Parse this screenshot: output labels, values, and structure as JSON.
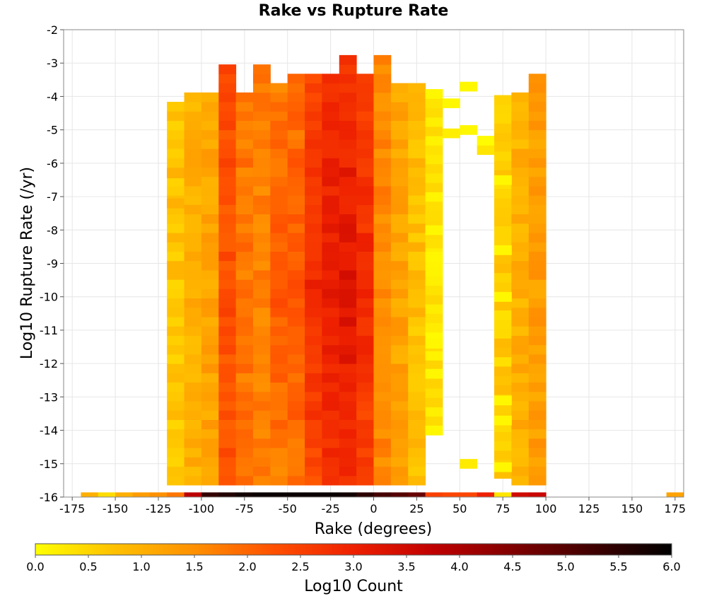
{
  "chart_data": {
    "type": "heatmap",
    "title": "Rake vs Rupture Rate",
    "xlabel": "Rake (degrees)",
    "ylabel": "Log10 Rupture Rate (/yr)",
    "colorbar_label": "Log10 Count",
    "xlim": [
      -180,
      180
    ],
    "ylim": [
      -16,
      -2
    ],
    "x_ticks": [
      -175,
      -150,
      -125,
      -100,
      -75,
      -50,
      -25,
      0,
      25,
      50,
      75,
      100,
      125,
      150,
      175
    ],
    "y_ticks": [
      -2,
      -3,
      -4,
      -5,
      -6,
      -7,
      -8,
      -9,
      -10,
      -11,
      -12,
      -13,
      -14,
      -15,
      -16
    ],
    "colorbar_ticks": [
      "0.0",
      "0.5",
      "1.0",
      "1.5",
      "2.0",
      "2.5",
      "3.0",
      "3.5",
      "4.0",
      "4.5",
      "5.0",
      "5.5",
      "6.0"
    ],
    "color_range": [
      0,
      6
    ],
    "colormap": [
      "#ffff00",
      "#ffc000",
      "#ff9000",
      "#ff5000",
      "#ee2000",
      "#c00000",
      "#800000",
      "#400000",
      "#000000"
    ],
    "grid": true,
    "x_bin_width": 10,
    "y_bin_width": 0.28,
    "x_bin_centers": [
      -165,
      -155,
      -145,
      -135,
      -125,
      -115,
      -105,
      -95,
      -85,
      -75,
      -65,
      -55,
      -45,
      -35,
      -25,
      -15,
      -5,
      5,
      15,
      25,
      35,
      45,
      55,
      65,
      75,
      85,
      95,
      175
    ],
    "bottom_row_values": [
      1.0,
      0.4,
      1.0,
      1.3,
      1.5,
      1.8,
      3.8,
      5.4,
      5.6,
      5.8,
      5.9,
      5.9,
      5.9,
      5.9,
      5.9,
      5.8,
      5.5,
      5.2,
      5.0,
      4.8,
      2.5,
      2.4,
      2.4,
      3.0,
      0.3,
      3.5,
      3.6,
      1.2
    ],
    "columns": [
      {
        "x": -115,
        "ranges": [
          [
            -15.5,
            -4.2,
            0.7
          ]
        ],
        "isolated": [
          [
            -6.3,
            1.0
          ],
          [
            -7.2,
            1.0
          ]
        ]
      },
      {
        "x": -105,
        "ranges": [
          [
            -15.5,
            -3.9,
            1.0
          ]
        ]
      },
      {
        "x": -95,
        "ranges": [
          [
            -15.5,
            -3.9,
            1.2
          ]
        ]
      },
      {
        "x": -85,
        "ranges": [
          [
            -15.5,
            -3.1,
            2.3
          ]
        ]
      },
      {
        "x": -75,
        "ranges": [
          [
            -15.5,
            -3.9,
            1.8
          ]
        ]
      },
      {
        "x": -65,
        "ranges": [
          [
            -15.5,
            -3.1,
            1.7
          ]
        ]
      },
      {
        "x": -55,
        "ranges": [
          [
            -15.5,
            -3.6,
            1.6
          ]
        ]
      },
      {
        "x": -45,
        "ranges": [
          [
            -15.5,
            -3.4,
            1.7
          ]
        ]
      },
      {
        "x": -35,
        "ranges": [
          [
            -15.5,
            -3.4,
            2.3
          ]
        ]
      },
      {
        "x": -25,
        "ranges": [
          [
            -15.5,
            -3.4,
            2.6
          ]
        ]
      },
      {
        "x": -15,
        "ranges": [
          [
            -15.5,
            -2.8,
            2.7
          ]
        ]
      },
      {
        "x": -5,
        "ranges": [
          [
            -15.5,
            -3.4,
            2.3
          ]
        ]
      },
      {
        "x": 5,
        "ranges": [
          [
            -15.5,
            -2.8,
            1.6
          ]
        ]
      },
      {
        "x": 15,
        "ranges": [
          [
            -15.5,
            -3.7,
            1.2
          ]
        ]
      },
      {
        "x": 25,
        "ranges": [
          [
            -15.5,
            -3.7,
            0.8
          ]
        ]
      },
      {
        "x": 35,
        "ranges": [
          [
            -14.0,
            -3.9,
            0.3
          ]
        ]
      },
      {
        "x": 55,
        "ranges": [
          [
            -15.0,
            -15.0,
            0.1
          ]
        ],
        "isolated": [
          [
            -5.0,
            0.1
          ],
          [
            -3.7,
            0.1
          ]
        ]
      },
      {
        "x": 65,
        "ranges": [
          [
            -5.1,
            -5.6,
            0.1
          ]
        ]
      },
      {
        "x": 75,
        "ranges": [
          [
            -15.3,
            -3.9,
            0.6
          ]
        ]
      },
      {
        "x": 85,
        "ranges": [
          [
            -15.5,
            -3.9,
            1.0
          ]
        ]
      },
      {
        "x": 95,
        "ranges": [
          [
            -15.5,
            -3.4,
            1.3
          ]
        ]
      }
    ]
  }
}
